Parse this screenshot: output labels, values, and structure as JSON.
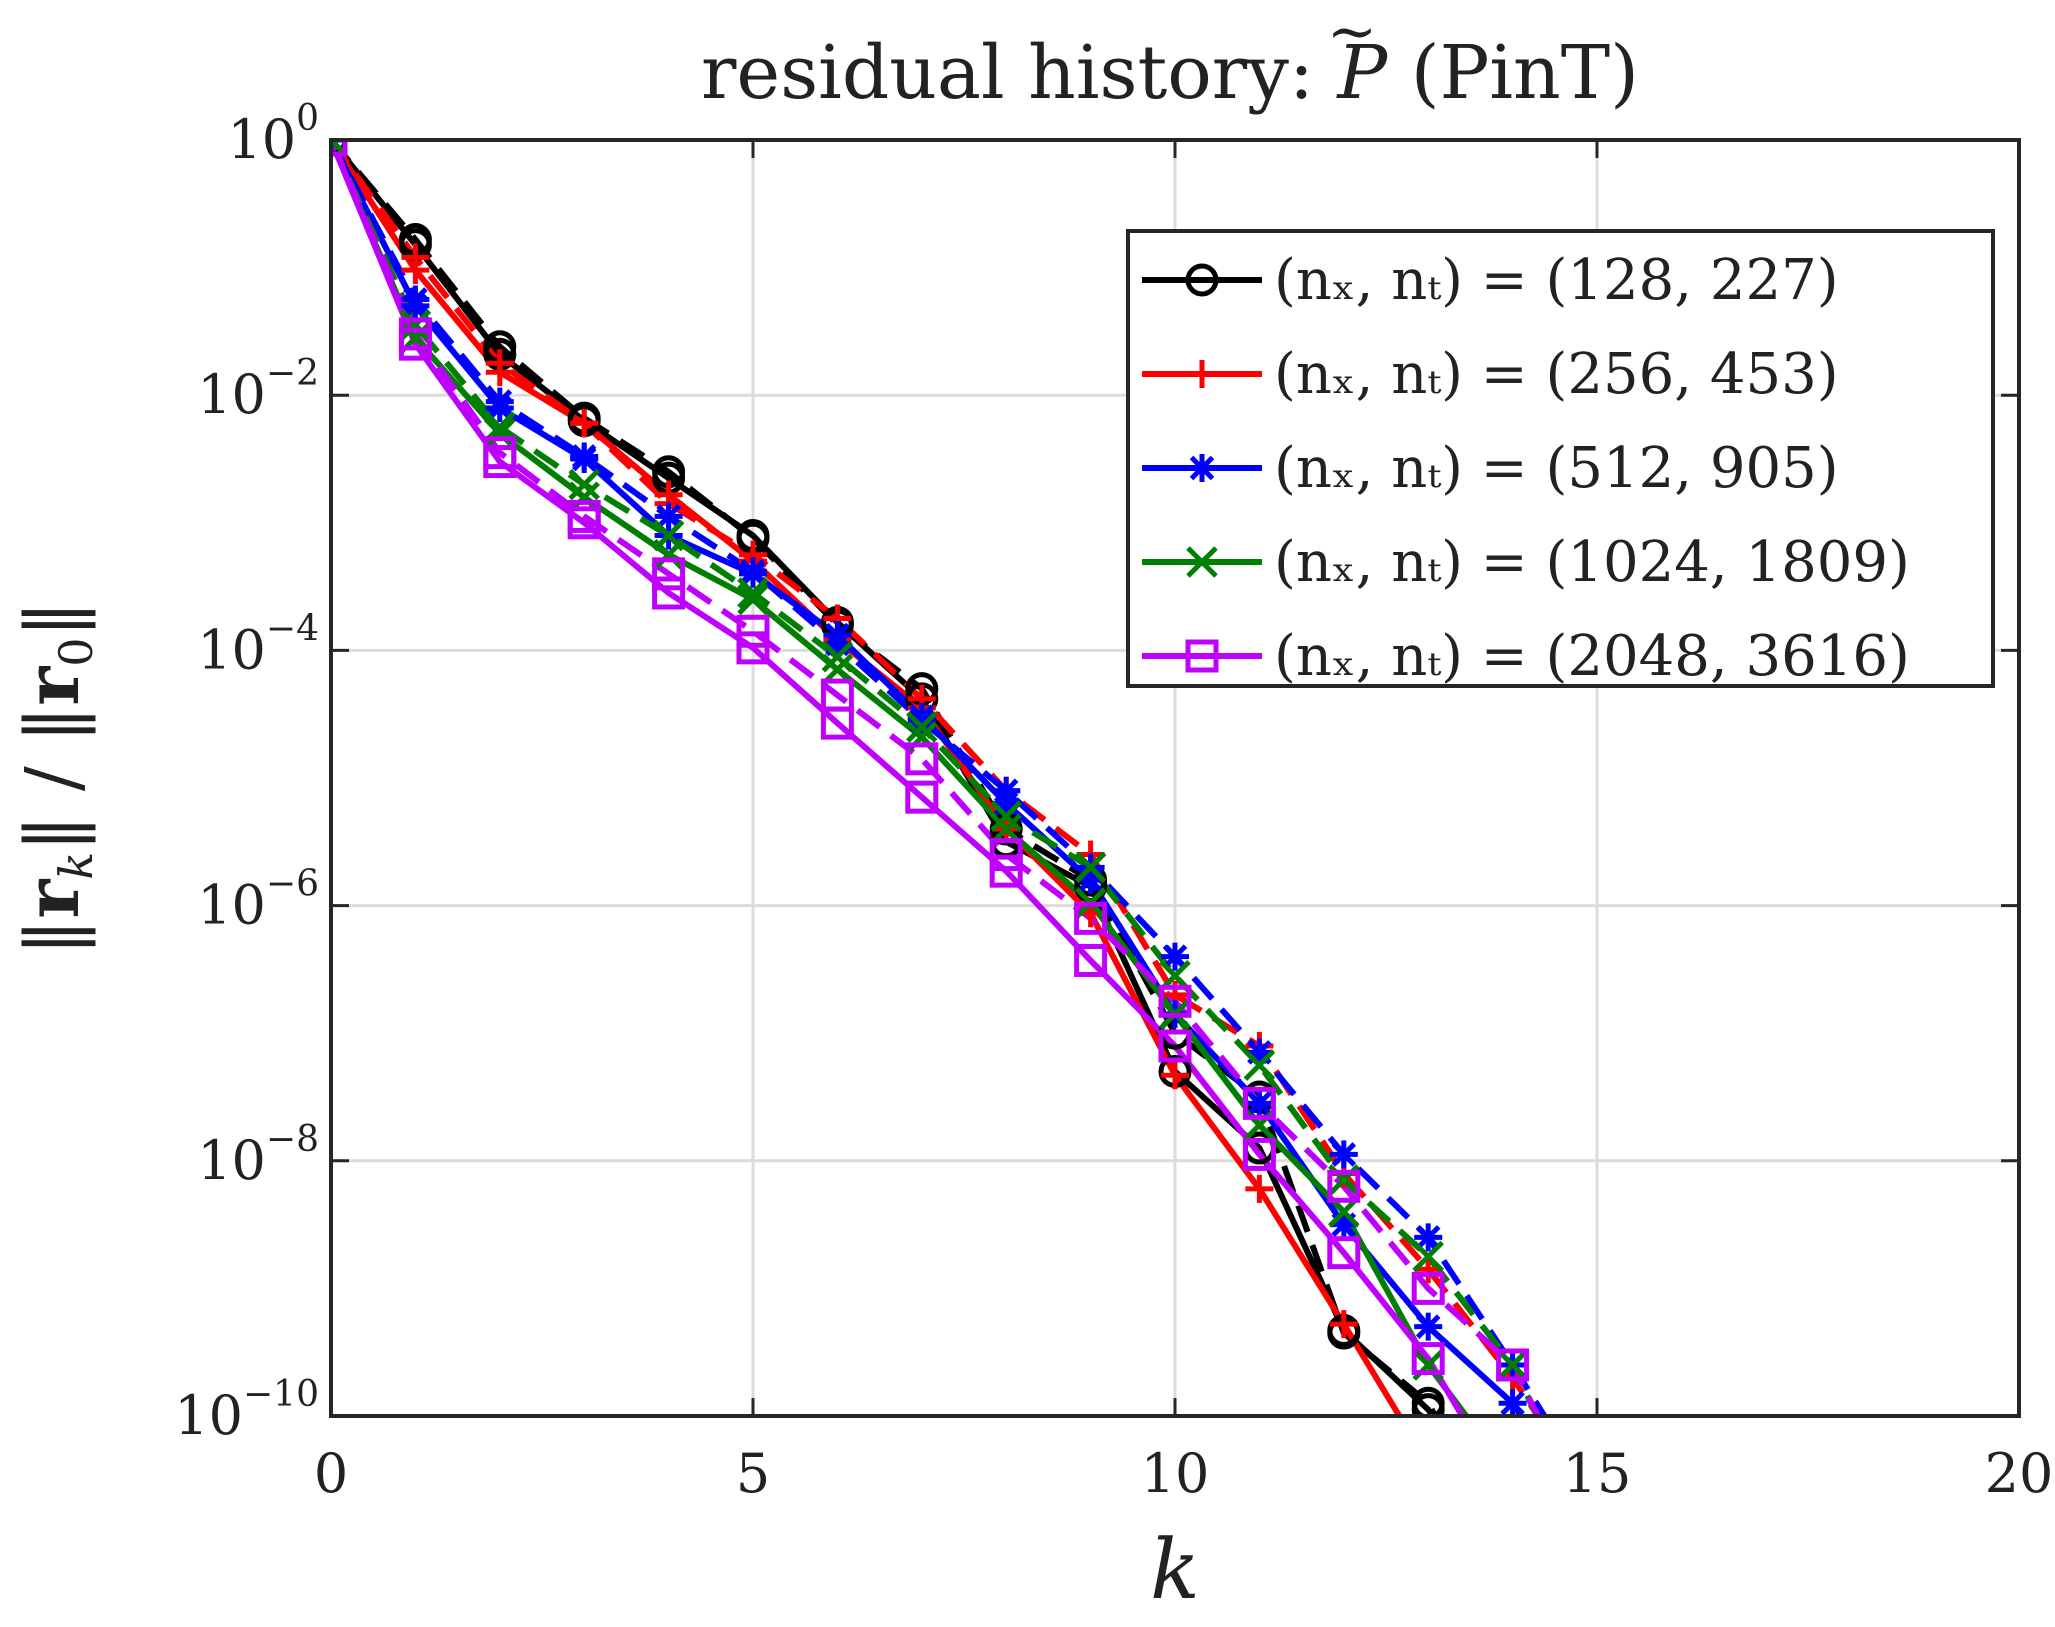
{
  "chart_data": {
    "type": "line",
    "title": "residual history: P̃ (PinT)",
    "xlabel": "k",
    "ylabel": "||r_k|| / ||r_0||",
    "xlim": [
      0,
      20
    ],
    "ylim_exponent": [
      -10,
      0
    ],
    "yscale": "log",
    "grid": true,
    "legend_position": "top-right",
    "x_ticks": [
      "0",
      "5",
      "10",
      "15",
      "20"
    ],
    "y_ticks": [
      {
        "exp": 0,
        "base": "10",
        "sup": "0"
      },
      {
        "exp": -2,
        "base": "10",
        "sup": "−2"
      },
      {
        "exp": -4,
        "base": "10",
        "sup": "−4"
      },
      {
        "exp": -6,
        "base": "10",
        "sup": "−6"
      },
      {
        "exp": -8,
        "base": "10",
        "sup": "−8"
      },
      {
        "exp": -10,
        "base": "10",
        "sup": "−10"
      }
    ],
    "series": [
      {
        "name": "(n_x, n_t) = (128, 227)",
        "legend_label": "(nₓ, nₜ) = (128, 227)",
        "color": "#000000",
        "marker": "circle",
        "solid": [
          [
            0,
            0
          ],
          [
            1,
            -0.82
          ],
          [
            2,
            -1.68
          ],
          [
            3,
            -2.2
          ],
          [
            4,
            -2.65
          ],
          [
            5,
            -3.1
          ],
          [
            6,
            -3.78
          ],
          [
            7,
            -4.38
          ],
          [
            8,
            -5.5
          ],
          [
            9,
            -5.85
          ],
          [
            10,
            -7.3
          ],
          [
            11,
            -7.9
          ],
          [
            12,
            -9.33
          ],
          [
            13,
            -9.95
          ],
          [
            13.6,
            -10.5
          ]
        ],
        "dashed": [
          [
            0,
            0
          ],
          [
            1,
            -0.78
          ],
          [
            2,
            -1.62
          ],
          [
            3,
            -2.18
          ],
          [
            4,
            -2.6
          ],
          [
            5,
            -3.12
          ],
          [
            6,
            -3.8
          ],
          [
            7,
            -4.3
          ],
          [
            8,
            -5.4
          ],
          [
            9,
            -5.8
          ],
          [
            10,
            -7.0
          ],
          [
            11,
            -7.5
          ],
          [
            12,
            -9.35
          ],
          [
            13,
            -9.9
          ],
          [
            13.5,
            -10.5
          ]
        ]
      },
      {
        "name": "(n_x, n_t) = (256, 453)",
        "legend_label": "(nₓ, nₜ) = (256, 453)",
        "color": "#ff0000",
        "marker": "plus",
        "solid": [
          [
            0,
            0
          ],
          [
            1,
            -1.02
          ],
          [
            2,
            -1.82
          ],
          [
            3,
            -2.22
          ],
          [
            4,
            -2.78
          ],
          [
            5,
            -3.3
          ],
          [
            6,
            -3.92
          ],
          [
            7,
            -4.45
          ],
          [
            8,
            -5.4
          ],
          [
            9,
            -6.06
          ],
          [
            10,
            -7.33
          ],
          [
            11,
            -8.22
          ],
          [
            12,
            -9.28
          ],
          [
            12.75,
            -10.1
          ]
        ],
        "dashed": [
          [
            0,
            0
          ],
          [
            1,
            -0.92
          ],
          [
            2,
            -1.75
          ],
          [
            3,
            -2.22
          ],
          [
            4,
            -2.85
          ],
          [
            5,
            -3.25
          ],
          [
            6,
            -3.75
          ],
          [
            7,
            -4.38
          ],
          [
            8,
            -5.1
          ],
          [
            9,
            -5.6
          ],
          [
            10,
            -6.7
          ],
          [
            11,
            -7.1
          ],
          [
            12,
            -8.1
          ],
          [
            13,
            -8.85
          ],
          [
            14,
            -9.7
          ],
          [
            14.3,
            -10.0
          ]
        ]
      },
      {
        "name": "(n_x, n_t) = (512, 905)",
        "legend_label": "(nₓ, nₜ) = (512, 905)",
        "color": "#0000ff",
        "marker": "asterisk",
        "solid": [
          [
            0,
            0
          ],
          [
            1,
            -1.3
          ],
          [
            2,
            -2.1
          ],
          [
            3,
            -2.5
          ],
          [
            4,
            -3.1
          ],
          [
            5,
            -3.4
          ],
          [
            6,
            -3.88
          ],
          [
            7,
            -4.52
          ],
          [
            8,
            -5.2
          ],
          [
            9,
            -5.8
          ],
          [
            10,
            -6.85
          ],
          [
            11,
            -7.55
          ],
          [
            12,
            -8.5
          ],
          [
            13,
            -9.3
          ],
          [
            14,
            -9.9
          ],
          [
            14.4,
            -10.3
          ]
        ],
        "dashed": [
          [
            0,
            0
          ],
          [
            1,
            -1.25
          ],
          [
            2,
            -2.05
          ],
          [
            3,
            -2.48
          ],
          [
            4,
            -2.95
          ],
          [
            5,
            -3.38
          ],
          [
            6,
            -3.95
          ],
          [
            7,
            -4.55
          ],
          [
            8,
            -5.1
          ],
          [
            9,
            -5.7
          ],
          [
            10,
            -6.4
          ],
          [
            11,
            -7.15
          ],
          [
            12,
            -7.95
          ],
          [
            13,
            -8.6
          ],
          [
            14,
            -9.6
          ],
          [
            14.85,
            -10.5
          ]
        ]
      },
      {
        "name": "(n_x, n_t) = (1024, 1809)",
        "legend_label": "(nₓ, nₜ) = (1024, 1809)",
        "color": "#007f00",
        "marker": "cross",
        "solid": [
          [
            0,
            0
          ],
          [
            1,
            -1.55
          ],
          [
            2,
            -2.3
          ],
          [
            3,
            -2.8
          ],
          [
            4,
            -3.25
          ],
          [
            5,
            -3.6
          ],
          [
            6,
            -4.15
          ],
          [
            7,
            -4.68
          ],
          [
            8,
            -5.4
          ],
          [
            9,
            -5.98
          ],
          [
            10,
            -6.85
          ],
          [
            11,
            -7.72
          ],
          [
            12,
            -8.4
          ],
          [
            13,
            -9.6
          ],
          [
            13.9,
            -10.4
          ]
        ],
        "dashed": [
          [
            0,
            0
          ],
          [
            1,
            -1.45
          ],
          [
            2,
            -2.25
          ],
          [
            3,
            -2.7
          ],
          [
            4,
            -3.1
          ],
          [
            5,
            -3.55
          ],
          [
            6,
            -4.05
          ],
          [
            7,
            -4.6
          ],
          [
            8,
            -5.3
          ],
          [
            9,
            -5.7
          ],
          [
            10,
            -6.55
          ],
          [
            11,
            -7.25
          ],
          [
            12,
            -8.15
          ],
          [
            13,
            -8.75
          ],
          [
            14,
            -9.6
          ],
          [
            14.65,
            -10.5
          ]
        ]
      },
      {
        "name": "(n_x, n_t) = (2048, 3616)",
        "legend_label": "(nₓ, nₜ) = (2048, 3616)",
        "color": "#bf00ff",
        "marker": "square",
        "solid": [
          [
            0,
            0
          ],
          [
            1,
            -1.6
          ],
          [
            2,
            -2.52
          ],
          [
            3,
            -3.0
          ],
          [
            4,
            -3.55
          ],
          [
            5,
            -3.98
          ],
          [
            6,
            -4.57
          ],
          [
            7,
            -5.15
          ],
          [
            8,
            -5.73
          ],
          [
            9,
            -6.43
          ],
          [
            10,
            -7.1
          ],
          [
            11,
            -7.95
          ],
          [
            12,
            -8.72
          ],
          [
            13,
            -9.55
          ],
          [
            13.85,
            -10.5
          ]
        ],
        "dashed": [
          [
            0,
            0
          ],
          [
            1,
            -1.52
          ],
          [
            2,
            -2.45
          ],
          [
            3,
            -2.95
          ],
          [
            4,
            -3.4
          ],
          [
            5,
            -3.85
          ],
          [
            6,
            -4.35
          ],
          [
            7,
            -4.85
          ],
          [
            8,
            -5.6
          ],
          [
            9,
            -6.1
          ],
          [
            10,
            -6.75
          ],
          [
            11,
            -7.55
          ],
          [
            12,
            -8.2
          ],
          [
            13,
            -9.0
          ],
          [
            14,
            -9.6
          ],
          [
            14.3,
            -10.0
          ]
        ]
      }
    ]
  }
}
